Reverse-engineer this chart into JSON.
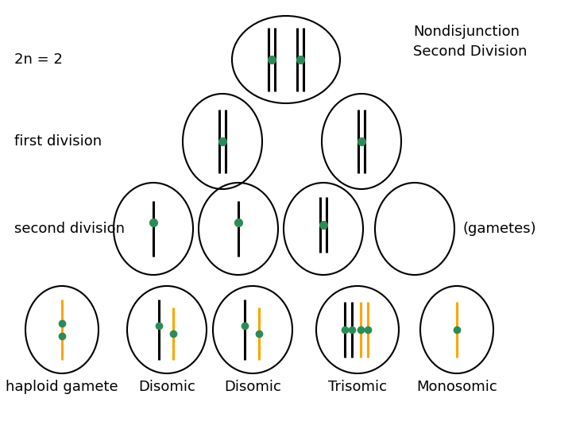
{
  "label_2n": "2n = 2",
  "label_first": "first division",
  "label_second": "second division",
  "label_haploid": "haploid gamete",
  "label_gametes": "(gametes)",
  "label_nondisj": "Nondisjunction",
  "label_sec_div": "Second Division",
  "gamete_labels": [
    "Disomic",
    "Disomic",
    "Trisomic",
    "Monosomic"
  ],
  "black": "#000000",
  "orange": "#FFA500",
  "teal": "#2E8B57",
  "bg": "#FFFFFF",
  "figsize": [
    7.2,
    5.4
  ],
  "dpi": 100,
  "font_size": 13
}
